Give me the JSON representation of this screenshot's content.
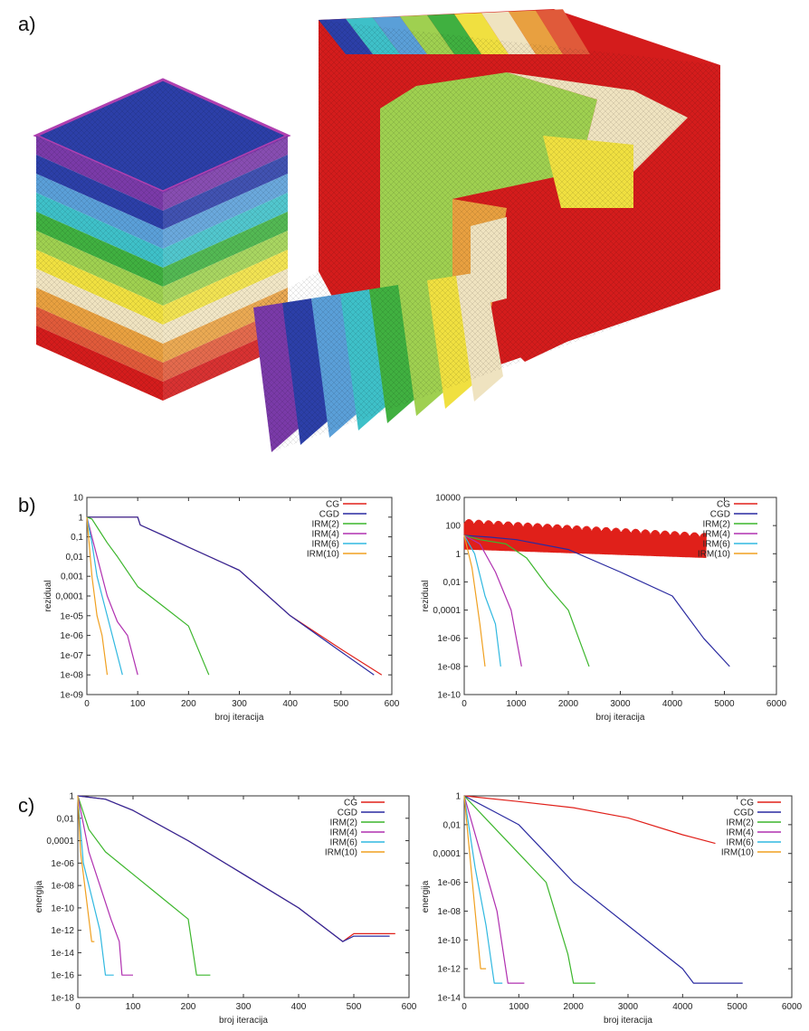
{
  "panels": {
    "a": "a)",
    "b": "b)",
    "c": "c)"
  },
  "colors": {
    "CG": "#e0201a",
    "CGD": "#2a2aa0",
    "IRM(2)": "#3cb62c",
    "IRM(4)": "#b030b0",
    "IRM(6)": "#30b8e0",
    "IRM(10)": "#f0a020",
    "mesh": [
      "#d41c1c",
      "#e05a3a",
      "#e8a040",
      "#efe3c0",
      "#f0e040",
      "#9fd050",
      "#40b040",
      "#3ec0c8",
      "#5a9fd8",
      "#2c3fa8",
      "#7a3aa8"
    ]
  },
  "chart_data": [
    {
      "id": "b-left",
      "type": "line",
      "xlabel": "broj iteracija",
      "ylabel": "rezidual",
      "log_y": true,
      "xlim": [
        0,
        600
      ],
      "ylim": [
        1e-09,
        10
      ],
      "x_ticks": [
        "0",
        "100",
        "200",
        "300",
        "400",
        "500",
        "600"
      ],
      "y_ticks": [
        "1e-09",
        "1e-08",
        "1e-07",
        "1e-06",
        "1e-05",
        "0,0001",
        "0,001",
        "0,01",
        "0,1",
        "1",
        "10"
      ],
      "legend": [
        "CG",
        "CGD",
        "IRM(2)",
        "IRM(4)",
        "IRM(6)",
        "IRM(10)"
      ],
      "series": [
        {
          "name": "CG",
          "x": [
            0,
            100,
            105,
            150,
            200,
            300,
            400,
            500,
            580
          ],
          "y": [
            1,
            1,
            0.4,
            0.12,
            0.03,
            0.002,
            1e-05,
            2e-07,
            1e-08
          ]
        },
        {
          "name": "CGD",
          "x": [
            0,
            100,
            105,
            150,
            200,
            300,
            400,
            500,
            565
          ],
          "y": [
            1,
            1,
            0.4,
            0.12,
            0.03,
            0.002,
            1e-05,
            1.5e-07,
            1e-08
          ]
        },
        {
          "name": "IRM(2)",
          "x": [
            0,
            10,
            25,
            40,
            60,
            100,
            150,
            200,
            240
          ],
          "y": [
            1,
            0.8,
            0.2,
            0.05,
            0.01,
            0.0003,
            3e-05,
            3e-06,
            1e-08
          ]
        },
        {
          "name": "IRM(4)",
          "x": [
            0,
            10,
            20,
            40,
            60,
            80,
            100
          ],
          "y": [
            1,
            0.1,
            0.01,
            0.0001,
            5e-06,
            1e-06,
            1e-08
          ]
        },
        {
          "name": "IRM(6)",
          "x": [
            0,
            10,
            20,
            30,
            50,
            70
          ],
          "y": [
            1,
            0.05,
            0.001,
            0.0001,
            1e-06,
            1e-08
          ]
        },
        {
          "name": "IRM(10)",
          "x": [
            0,
            10,
            20,
            30,
            40
          ],
          "y": [
            1,
            0.001,
            1e-05,
            1e-06,
            1e-08
          ]
        }
      ]
    },
    {
      "id": "b-right",
      "type": "line",
      "xlabel": "broj iteracija",
      "ylabel": "rezidual",
      "log_y": true,
      "xlim": [
        0,
        6000
      ],
      "ylim": [
        1e-10,
        10000
      ],
      "x_ticks": [
        "0",
        "1000",
        "2000",
        "3000",
        "4000",
        "5000",
        "6000"
      ],
      "y_ticks": [
        "1e-10",
        "1e-08",
        "1e-06",
        "0,0001",
        "0,01",
        "1",
        "100",
        "10000"
      ],
      "legend": [
        "CG",
        "CGD",
        "IRM(2)",
        "IRM(4)",
        "IRM(6)",
        "IRM(10)"
      ],
      "series": [
        {
          "name": "CG",
          "x": [
            0,
            4650
          ],
          "y_band": [
            [
              2,
              300
            ],
            [
              0.5,
              30
            ]
          ]
        },
        {
          "name": "CGD",
          "x": [
            0,
            500,
            1000,
            2000,
            3000,
            4000,
            4600,
            5100
          ],
          "y": [
            20,
            15,
            10,
            2,
            0.05,
            0.001,
            1e-06,
            1e-08
          ]
        },
        {
          "name": "IRM(2)",
          "x": [
            0,
            300,
            800,
            1200,
            1600,
            2000,
            2400
          ],
          "y": [
            20,
            10,
            5,
            0.5,
            0.005,
            0.0001,
            1e-08
          ]
        },
        {
          "name": "IRM(4)",
          "x": [
            0,
            300,
            600,
            900,
            1100
          ],
          "y": [
            20,
            5,
            0.05,
            0.0001,
            1e-08
          ]
        },
        {
          "name": "IRM(6)",
          "x": [
            0,
            200,
            400,
            600,
            700
          ],
          "y": [
            20,
            1,
            0.001,
            1e-05,
            1e-08
          ]
        },
        {
          "name": "IRM(10)",
          "x": [
            0,
            150,
            300,
            400
          ],
          "y": [
            20,
            0.1,
            1e-05,
            1e-08
          ]
        }
      ]
    },
    {
      "id": "c-left",
      "type": "line",
      "xlabel": "broj iteracija",
      "ylabel": "energija",
      "log_y": true,
      "xlim": [
        0,
        600
      ],
      "ylim": [
        1e-18,
        1
      ],
      "x_ticks": [
        "0",
        "100",
        "200",
        "300",
        "400",
        "500",
        "600"
      ],
      "y_ticks": [
        "1e-18",
        "1e-16",
        "1e-14",
        "1e-12",
        "1e-10",
        "1e-08",
        "1e-06",
        "0,0001",
        "0,01",
        "1"
      ],
      "legend": [
        "CG",
        "CGD",
        "IRM(2)",
        "IRM(4)",
        "IRM(6)",
        "IRM(10)"
      ],
      "series": [
        {
          "name": "CG",
          "x": [
            0,
            50,
            100,
            200,
            300,
            400,
            480,
            500,
            575
          ],
          "y": [
            1,
            0.5,
            0.05,
            0.0001,
            1e-07,
            1e-10,
            1e-13,
            5e-13,
            5e-13
          ]
        },
        {
          "name": "CGD",
          "x": [
            0,
            50,
            100,
            200,
            300,
            400,
            480,
            500,
            565
          ],
          "y": [
            1,
            0.5,
            0.05,
            0.0001,
            1e-07,
            1e-10,
            1e-13,
            3e-13,
            3e-13
          ]
        },
        {
          "name": "IRM(2)",
          "x": [
            0,
            20,
            50,
            100,
            150,
            200,
            215,
            240
          ],
          "y": [
            1,
            0.001,
            1e-05,
            1e-07,
            1e-09,
            1e-11,
            1e-16,
            1e-16
          ]
        },
        {
          "name": "IRM(4)",
          "x": [
            0,
            20,
            40,
            60,
            75,
            80,
            100
          ],
          "y": [
            1,
            1e-05,
            1e-08,
            1e-11,
            1e-13,
            1e-16,
            1e-16
          ]
        },
        {
          "name": "IRM(6)",
          "x": [
            0,
            10,
            25,
            40,
            50,
            65
          ],
          "y": [
            1,
            1e-06,
            1e-09,
            1e-12,
            1e-16,
            1e-16
          ]
        },
        {
          "name": "IRM(10)",
          "x": [
            0,
            5,
            15,
            25,
            30
          ],
          "y": [
            1,
            1e-05,
            1e-09,
            1e-13,
            1e-13
          ]
        }
      ]
    },
    {
      "id": "c-right",
      "type": "line",
      "xlabel": "broj iteracija",
      "ylabel": "energija",
      "log_y": true,
      "xlim": [
        0,
        6000
      ],
      "ylim": [
        1e-14,
        1
      ],
      "x_ticks": [
        "0",
        "1000",
        "2000",
        "3000",
        "4000",
        "5000",
        "6000"
      ],
      "y_ticks": [
        "1e-14",
        "1e-12",
        "1e-10",
        "1e-08",
        "1e-06",
        "0,0001",
        "0,01",
        "1"
      ],
      "legend": [
        "CG",
        "CGD",
        "IRM(2)",
        "IRM(4)",
        "IRM(6)",
        "IRM(10)"
      ],
      "series": [
        {
          "name": "CG",
          "x": [
            0,
            1000,
            2000,
            3000,
            4000,
            4600
          ],
          "y": [
            1,
            0.4,
            0.15,
            0.03,
            0.002,
            0.0005
          ]
        },
        {
          "name": "CGD",
          "x": [
            0,
            500,
            1000,
            1500,
            2000,
            3000,
            4000,
            4200,
            5100
          ],
          "y": [
            1,
            0.1,
            0.01,
            0.0001,
            1e-06,
            1e-09,
            1e-12,
            1e-13,
            1e-13
          ]
        },
        {
          "name": "IRM(2)",
          "x": [
            0,
            500,
            1000,
            1500,
            1900,
            2000,
            2400
          ],
          "y": [
            1,
            0.01,
            0.0001,
            1e-06,
            1e-11,
            1e-13,
            1e-13
          ]
        },
        {
          "name": "IRM(4)",
          "x": [
            0,
            300,
            600,
            800,
            1100
          ],
          "y": [
            1,
            0.0001,
            1e-08,
            1e-13,
            1e-13
          ]
        },
        {
          "name": "IRM(6)",
          "x": [
            0,
            200,
            400,
            550,
            700
          ],
          "y": [
            1,
            1e-05,
            1e-09,
            1e-13,
            1e-13
          ]
        },
        {
          "name": "IRM(10)",
          "x": [
            0,
            150,
            300,
            400
          ],
          "y": [
            1,
            1e-06,
            1e-12,
            1e-12
          ]
        }
      ]
    }
  ]
}
